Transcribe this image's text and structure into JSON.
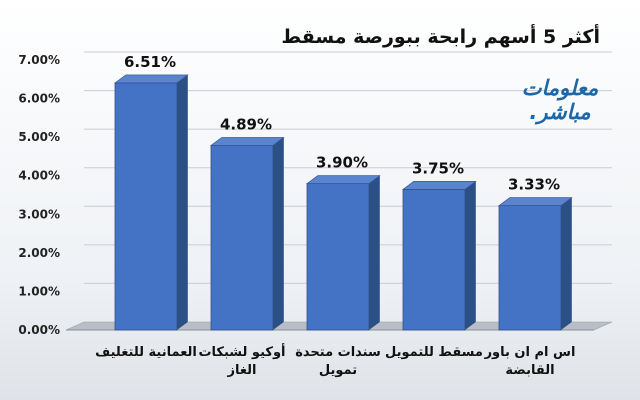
{
  "chart_data": {
    "type": "bar",
    "title": "أكثر 5 أسهم رابحة ببورصة مسقط",
    "categories": [
      "العمانية للتغليف",
      "أوكيو لشبكات الغاز",
      "سندات متحدة تمويل",
      "مسقط للتمويل",
      "اس ام ان باور القابضة"
    ],
    "values": [
      6.51,
      4.89,
      3.9,
      3.75,
      3.33
    ],
    "value_labels": [
      "6.51%",
      "4.89%",
      "3.90%",
      "3.75%",
      "3.33%"
    ],
    "yticks": [
      "0.00%",
      "1.00%",
      "2.00%",
      "3.00%",
      "4.00%",
      "5.00%",
      "6.00%",
      "7.00%"
    ],
    "ylim": [
      0,
      7
    ],
    "grid": true,
    "bar_color": "#4472c4"
  },
  "logo": {
    "line1": "معلومات",
    "line2": "مباشر."
  }
}
